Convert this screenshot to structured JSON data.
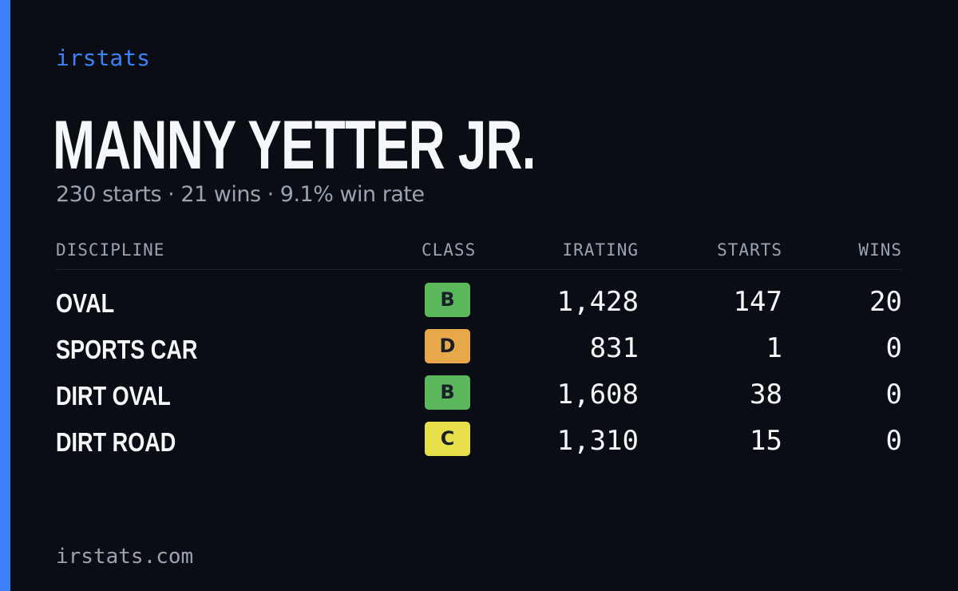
{
  "brand": "irstats",
  "driver": {
    "name": "MANNY YETTER JR.",
    "summary": "230 starts · 21 wins · 9.1% win rate"
  },
  "table": {
    "headers": {
      "discipline": "DISCIPLINE",
      "class": "CLASS",
      "irating": "IRATING",
      "starts": "STARTS",
      "wins": "WINS"
    },
    "rows": [
      {
        "discipline": "OVAL",
        "class": "B",
        "class_color": "#5cb85c",
        "irating": "1,428",
        "starts": "147",
        "wins": "20"
      },
      {
        "discipline": "SPORTS CAR",
        "class": "D",
        "class_color": "#e8a84a",
        "irating": "831",
        "starts": "1",
        "wins": "0"
      },
      {
        "discipline": "DIRT OVAL",
        "class": "B",
        "class_color": "#5cb85c",
        "irating": "1,608",
        "starts": "38",
        "wins": "0"
      },
      {
        "discipline": "DIRT ROAD",
        "class": "C",
        "class_color": "#e8e04a",
        "irating": "1,310",
        "starts": "15",
        "wins": "0"
      }
    ]
  },
  "footer": "irstats.com",
  "colors": {
    "background": "#0a0d14",
    "accent": "#3b82f6",
    "text": "#f5f7fa",
    "muted": "#9aa3b2"
  }
}
